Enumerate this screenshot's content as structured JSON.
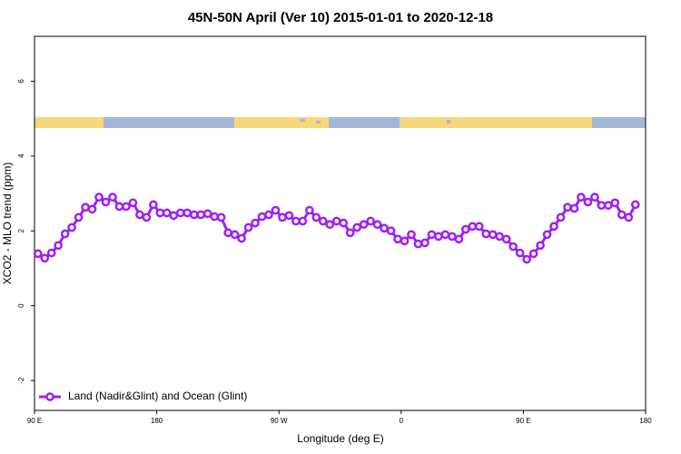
{
  "chart_data": {
    "type": "line",
    "title": "45N-50N April (Ver 10)   2015-01-01 to 2020-12-18",
    "x_label": "Longitude (deg E)",
    "y_label": "XCO2 - MLO trend (ppm)",
    "xlim": [
      90,
      540
    ],
    "ylim": [
      -2.8,
      7.2
    ],
    "xticks": [
      {
        "value": 90,
        "label": "90 E"
      },
      180,
      {
        "value": 270,
        "label": "90 W"
      },
      {
        "value": 360,
        "label": "0"
      },
      {
        "value": 450,
        "label": "90 E"
      },
      {
        "value": 540,
        "label": "180"
      }
    ],
    "yticks": [
      -2,
      0,
      2,
      4,
      6
    ],
    "legend": "lower left",
    "x": [
      92.5,
      97.5,
      102.5,
      107.5,
      112.5,
      117.5,
      122.5,
      127.5,
      132.5,
      137.5,
      142.5,
      147.5,
      152.5,
      157.5,
      162.5,
      167.5,
      172.5,
      177.5,
      182.5,
      187.5,
      192.5,
      197.5,
      202.5,
      207.5,
      212.5,
      217.5,
      222.5,
      227.5,
      232.5,
      237.5,
      242.5,
      247.5,
      252.5,
      257.5,
      262.5,
      267.5,
      272.5,
      277.5,
      282.5,
      287.5,
      292.5,
      297.5,
      302.5,
      307.5,
      312.5,
      317.5,
      322.5,
      327.5,
      332.5,
      337.5,
      342.5,
      347.5,
      352.5,
      357.5,
      362.5,
      367.5,
      372.5,
      377.5,
      382.5,
      387.5,
      392.5,
      397.5,
      402.5,
      407.5,
      412.5,
      417.5,
      422.5,
      427.5,
      432.5,
      437.5,
      442.5,
      447.5,
      452.5,
      457.5,
      462.5,
      467.5,
      472.5,
      477.5,
      482.5,
      487.5,
      492.5,
      497.5,
      502.5,
      507.5,
      512.5,
      517.5,
      522.5,
      527.5,
      532.5
    ],
    "series": [
      {
        "name": "Land (Nadir&Glint) and Ocean (Glint)",
        "color": "#a020f0",
        "values": [
          1.39,
          1.27,
          1.41,
          1.61,
          1.92,
          2.09,
          2.36,
          2.63,
          2.58,
          2.9,
          2.77,
          2.9,
          2.65,
          2.65,
          2.75,
          2.43,
          2.36,
          2.7,
          2.48,
          2.48,
          2.41,
          2.48,
          2.48,
          2.43,
          2.43,
          2.46,
          2.38,
          2.36,
          1.95,
          1.9,
          1.8,
          2.09,
          2.21,
          2.38,
          2.43,
          2.55,
          2.36,
          2.41,
          2.26,
          2.26,
          2.55,
          2.36,
          2.26,
          2.17,
          2.26,
          2.21,
          1.95,
          2.09,
          2.17,
          2.26,
          2.17,
          2.07,
          2.0,
          1.78,
          1.73,
          1.9,
          1.65,
          1.68,
          1.9,
          1.85,
          1.9,
          1.85,
          1.78,
          2.04,
          2.12,
          2.12,
          1.92,
          1.9,
          1.85,
          1.78,
          1.58,
          1.41,
          1.24,
          1.39,
          1.61,
          1.9,
          2.12,
          2.36,
          2.63,
          2.6,
          2.9,
          2.77,
          2.9,
          2.68,
          2.68,
          2.75,
          2.43,
          2.36,
          2.7
        ]
      }
    ]
  }
}
